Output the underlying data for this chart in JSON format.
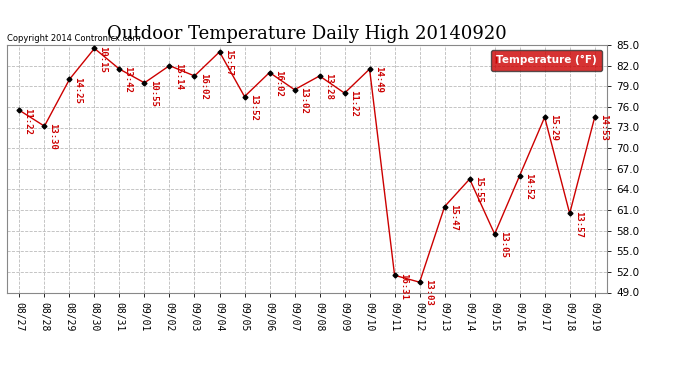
{
  "title": "Outdoor Temperature Daily High 20140920",
  "copyright": "Copyright 2014 Contronicx.com",
  "legend_label": "Temperature (°F)",
  "dates": [
    "08/27",
    "08/28",
    "08/29",
    "08/30",
    "08/31",
    "09/01",
    "09/02",
    "09/03",
    "09/04",
    "09/05",
    "09/06",
    "09/07",
    "09/08",
    "09/09",
    "09/10",
    "09/11",
    "09/12",
    "09/13",
    "09/14",
    "09/15",
    "09/16",
    "09/17",
    "09/18",
    "09/19"
  ],
  "temps": [
    75.5,
    73.2,
    80.0,
    84.5,
    81.5,
    79.5,
    82.0,
    80.5,
    84.0,
    77.5,
    81.0,
    78.5,
    80.5,
    78.0,
    81.5,
    51.5,
    50.5,
    61.5,
    65.5,
    57.5,
    66.0,
    74.5,
    60.5,
    74.5
  ],
  "times": [
    "11:22",
    "13:30",
    "14:25",
    "10:15",
    "13:42",
    "10:55",
    "15:14",
    "16:02",
    "15:57",
    "13:52",
    "16:02",
    "13:02",
    "13:28",
    "11:22",
    "14:49",
    "16:31",
    "13:03",
    "15:47",
    "15:55",
    "13:05",
    "14:52",
    "15:29",
    "13:57",
    "14:53"
  ],
  "line_color": "#cc0000",
  "marker_color": "#000000",
  "bg_color": "#ffffff",
  "grid_color": "#bbbbbb",
  "ylim_min": 49.0,
  "ylim_max": 85.0,
  "yticks": [
    49.0,
    52.0,
    55.0,
    58.0,
    61.0,
    64.0,
    67.0,
    70.0,
    73.0,
    76.0,
    79.0,
    82.0,
    85.0
  ],
  "title_fontsize": 13,
  "time_fontsize": 6.5,
  "legend_bg": "#cc0000",
  "legend_text_color": "#ffffff"
}
